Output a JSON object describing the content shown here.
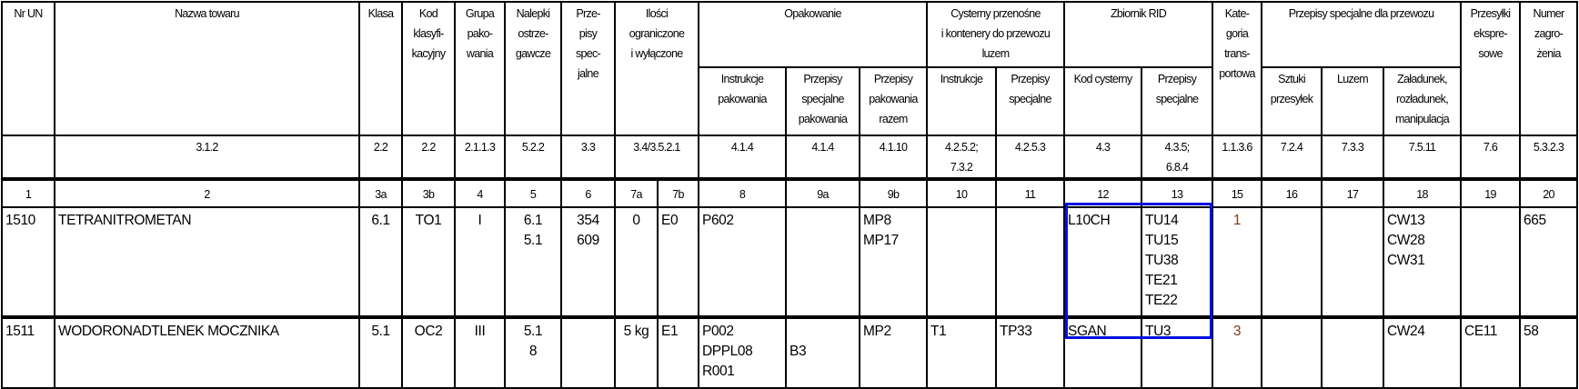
{
  "header": {
    "nr_un": "Nr UN",
    "nazwa": "Nazwa towaru",
    "klasa": "Klasa",
    "kod": "Kod\nklasyfi-\nkacyjny",
    "grupa": "Grupa\npako-\nwania",
    "nalepki": "Nalepki\nostrze-\ngawcze",
    "przepisy": "Prze-\npisy\nspec-\njalne",
    "ilosci": "Ilości\nograniczone\ni wyłączone",
    "opakowanie": "Opakowanie",
    "opak_instr": "Instrukcje\npakowania",
    "opak_spec": "Przepisy\nspecjalne\npakowania",
    "opak_razem": "Przepisy\npakowania\nrazem",
    "cysterny": "Cysterny przenośne\ni kontenery do przewozu\nluzem",
    "cyst_instr": "Instrukcje",
    "cyst_spec": "Przepisy\nspecjalne",
    "zbiornik": "Zbiornik RID",
    "zb_kod": "Kod cysterny",
    "zb_spec": "Przepisy\nspecjalne",
    "kategoria": "Kate-\ngoria\ntrans-\nportowa",
    "przewoz": "Przepisy specjalne dla przewozu",
    "pw_sztuki": "Sztuki\nprzesyłek",
    "pw_luzem": "Luzem",
    "pw_zaladunek": "Załadunek,\nrozładunek,\nmanipulacja",
    "przesylki": "Przesyłki\nekspre-\nsowe",
    "numer": "Numer\nzagro-\nżenia"
  },
  "refs": [
    "",
    "3.1.2",
    "2.2",
    "2.2",
    "2.1.1.3",
    "5.2.2",
    "3.3",
    "3.4/3.5.2.1",
    "4.1.4",
    "4.1.4",
    "4.1.10",
    "4.2.5.2;\n7.3.2",
    "4.2.5.3",
    "4.3",
    "4.3.5;\n6.8.4",
    "1.1.3.6",
    "7.2.4",
    "7.3.3",
    "7.5.11",
    "7.6",
    "5.3.2.3"
  ],
  "column_numbers": [
    "1",
    "2",
    "3a",
    "3b",
    "4",
    "5",
    "6",
    "7a",
    "7b",
    "8",
    "9a",
    "9b",
    "10",
    "11",
    "12",
    "13",
    "15",
    "16",
    "17",
    "18",
    "19",
    "20"
  ],
  "rows": [
    {
      "cells": [
        "1510",
        "TETRANITROMETAN",
        "6.1",
        "TO1",
        "I",
        "6.1\n5.1",
        "354\n609",
        "0",
        "E0",
        "P602",
        "",
        "MP8\nMP17",
        "",
        "",
        "L10CH",
        "TU14\nTU15\nTU38\nTE21\nTE22",
        "1",
        "",
        "",
        "CW13\nCW28\nCW31",
        "",
        "665"
      ]
    },
    {
      "cells": [
        "1511",
        "WODORONADTLENEK MOCZNIKA",
        "5.1",
        "OC2",
        "III",
        "5.1\n8",
        "",
        "5 kg",
        "E1",
        "P002\nDPPL08\nR001",
        "\nB3",
        "MP2",
        "T1",
        "TP33",
        "SGAN",
        "TU3",
        "3",
        "",
        "",
        "CW24",
        "CE11",
        "58"
      ]
    }
  ],
  "colors": {
    "highlight_box": "#0010e0",
    "category_text": "#7a3a12"
  }
}
